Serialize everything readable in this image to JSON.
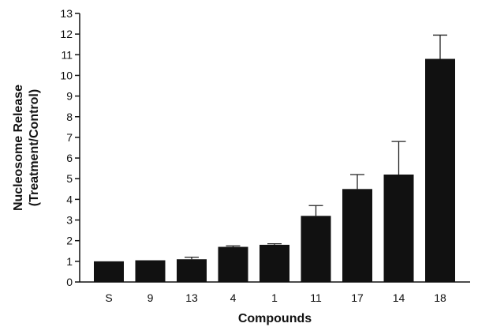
{
  "chart_data": {
    "type": "bar",
    "title": "",
    "xlabel": "Compounds",
    "ylabel_line1": "Nucleosome Release",
    "ylabel_line2": "(Treatment/Control)",
    "categories": [
      "S",
      "9",
      "13",
      "4",
      "1",
      "11",
      "17",
      "14",
      "18"
    ],
    "values": [
      1.0,
      1.05,
      1.1,
      1.7,
      1.8,
      3.2,
      4.5,
      5.2,
      10.8
    ],
    "error_upper": [
      0.0,
      0.0,
      0.1,
      0.05,
      0.05,
      0.5,
      0.7,
      1.6,
      1.15
    ],
    "ylim": [
      0,
      13
    ],
    "yticks": [
      "0",
      "1",
      "2",
      "3",
      "4",
      "5",
      "6",
      "7",
      "8",
      "9",
      "10",
      "11",
      "12",
      "13"
    ],
    "grid": false,
    "bar_color": "#111111"
  }
}
